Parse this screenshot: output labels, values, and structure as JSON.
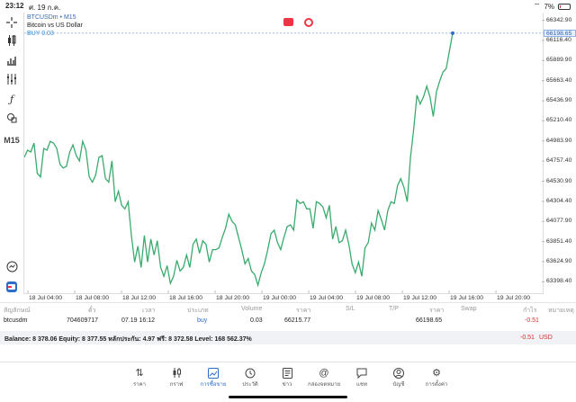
{
  "status": {
    "time": "23:12",
    "date": "ศ. 19 ก.ค.",
    "battery": "7%"
  },
  "chart": {
    "symbol_line": "BTCUSDm • M15",
    "description": "Bitcoin vs US Dollar",
    "buy_label": "BUY 0.03",
    "timeframe": "M15",
    "current_price": "66198.65",
    "line_color": "#3aab6d"
  },
  "chart_data": {
    "type": "line",
    "y_ticks": [
      "66342.90",
      "66116.40",
      "65889.90",
      "65663.40",
      "65436.90",
      "65210.40",
      "64983.90",
      "64757.40",
      "64530.90",
      "64304.40",
      "64077.90",
      "63851.40",
      "63624.90",
      "63398.40"
    ],
    "x_ticks": [
      "18 Jul 04:00",
      "18 Jul 08:00",
      "18 Jul 12:00",
      "18 Jul 16:00",
      "18 Jul 20:00",
      "19 Jul 00:00",
      "19 Jul 04:00",
      "19 Jul 08:00",
      "19 Jul 12:00",
      "19 Jul 16:00",
      "19 Jul 20:00"
    ],
    "ylim": [
      63270,
      66430
    ],
    "series": [
      {
        "values": [
          64800,
          64880,
          64860,
          64960,
          64620,
          64580,
          64900,
          64880,
          64980,
          64960,
          64900,
          64720,
          64680,
          64700,
          64860,
          64940,
          64820,
          64760,
          64980,
          64880,
          64580,
          64520,
          64600,
          64800,
          64820,
          64560,
          64520,
          64760,
          64300,
          64420,
          64260,
          64220,
          64300,
          63920,
          63620,
          63800,
          63560,
          63920,
          63620,
          63880,
          63700,
          63860,
          63560,
          63460,
          63580,
          63380,
          63460,
          63640,
          63520,
          63560,
          63700,
          63560,
          63820,
          63880,
          63720,
          63860,
          63820,
          63620,
          63760,
          63760,
          63780,
          63900,
          64000,
          64160,
          64080,
          64040,
          63900,
          63760,
          63600,
          63660,
          63520,
          63480,
          63360,
          63500,
          63600,
          63760,
          63940,
          63980,
          63840,
          63760,
          63900,
          64020,
          64040,
          63980,
          64320,
          64280,
          64300,
          64220,
          64220,
          64000,
          64300,
          64280,
          64240,
          64120,
          64260,
          63880,
          64020,
          63840,
          63860,
          63980,
          63820,
          63600,
          63500,
          63620,
          63460,
          63780,
          63840,
          64060,
          63980,
          64200,
          64100,
          63980,
          64200,
          64300,
          64280,
          64480,
          64560,
          64460,
          64300,
          64800,
          65120,
          65500,
          65400,
          65480,
          65600,
          65480,
          65260,
          65540,
          65660,
          65760,
          65800,
          66000,
          66198.65
        ]
      }
    ]
  },
  "trade_table": {
    "headers": [
      "สัญลักษณ์",
      "ตั๋ว",
      "เวลา",
      "ประเภท",
      "Volume",
      "ราคา",
      "S/L",
      "T/P",
      "ราคา",
      "Swap",
      "กำไร",
      "หมายเหตุ"
    ],
    "row": {
      "symbol": "btcusdm",
      "ticket": "704609717",
      "time": "07.19 16:12",
      "type": "buy",
      "volume": "0.03",
      "open_price": "66215.77",
      "sl": "",
      "tp": "",
      "price": "66198.65",
      "swap": "",
      "profit": "-0.51",
      "comment": ""
    }
  },
  "balance": {
    "text": "Balance: 8 378.06 Equity: 8 377.55 หลักประกัน: 4.97 ฟรี: 8 372.58 Level: 168 562.37%",
    "profit": "-0.51",
    "currency": "USD"
  },
  "nav": [
    {
      "label": "ราคา",
      "icon": "arrows-icon"
    },
    {
      "label": "กราฟ",
      "icon": "candles-icon"
    },
    {
      "label": "การซื้อขาย",
      "icon": "trade-icon",
      "active": true
    },
    {
      "label": "ประวัติ",
      "icon": "history-icon"
    },
    {
      "label": "ข่าว",
      "icon": "news-icon"
    },
    {
      "label": "กล่องจดหมาย",
      "icon": "mail-icon"
    },
    {
      "label": "แชท",
      "icon": "chat-icon"
    },
    {
      "label": "บัญชี",
      "icon": "account-icon"
    },
    {
      "label": "การตั้งค่า",
      "icon": "settings-icon"
    }
  ]
}
